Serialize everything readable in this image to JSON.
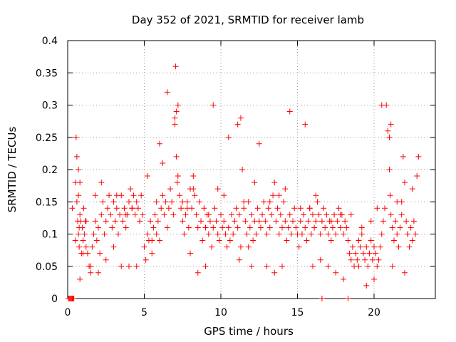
{
  "chart_data": {
    "type": "scatter",
    "title": "Day 352 of 2021, SRMTID for receiver lamb",
    "xlabel": "GPS time / hours",
    "ylabel": "SRMTID / TECUs",
    "xlim": [
      0,
      24
    ],
    "ylim": [
      0,
      0.4
    ],
    "x_ticks": [
      0,
      5,
      10,
      15,
      20
    ],
    "x_tick_labels": [
      "0",
      "5",
      "10",
      "15",
      "20"
    ],
    "y_ticks": [
      0,
      0.05,
      0.1,
      0.15,
      0.2,
      0.25,
      0.3,
      0.35,
      0.4
    ],
    "y_tick_labels": [
      "0",
      "0.05",
      "0.1",
      "0.15",
      "0.2",
      "0.25",
      "0.3",
      "0.35",
      "0.4"
    ],
    "grid": true,
    "marker": "+",
    "series": [
      {
        "name": "SRMTID",
        "color": "#ff0000",
        "x": [
          0.05,
          0.1,
          0.15,
          0.2,
          0.25,
          0.3,
          0.35,
          0.4,
          0.5,
          0.5,
          0.55,
          0.6,
          0.6,
          0.65,
          0.7,
          0.7,
          0.75,
          0.8,
          0.8,
          0.85,
          0.9,
          0.95,
          1.0,
          1.05,
          1.1,
          1.15,
          1.2,
          1.3,
          1.4,
          1.5,
          1.6,
          1.7,
          1.8,
          1.9,
          2.0,
          2.1,
          2.2,
          2.3,
          2.4,
          2.5,
          2.6,
          2.7,
          2.8,
          2.9,
          3.0,
          3.1,
          3.2,
          3.3,
          3.4,
          3.5,
          3.6,
          3.7,
          3.8,
          3.9,
          4.0,
          4.1,
          4.2,
          4.3,
          4.4,
          4.5,
          4.6,
          4.7,
          4.8,
          4.9,
          5.0,
          5.1,
          5.2,
          5.3,
          5.4,
          5.5,
          5.6,
          5.7,
          5.8,
          5.9,
          6.0,
          6.1,
          6.2,
          6.3,
          6.4,
          6.5,
          6.6,
          6.7,
          6.8,
          6.9,
          7.0,
          7.05,
          7.1,
          7.15,
          7.2,
          7.3,
          7.4,
          7.5,
          7.6,
          7.7,
          7.8,
          7.9,
          8.0,
          8.1,
          8.2,
          8.3,
          8.4,
          8.5,
          8.6,
          8.7,
          8.8,
          8.9,
          9.0,
          9.1,
          9.2,
          9.3,
          9.4,
          9.5,
          9.6,
          9.7,
          9.8,
          9.9,
          10.0,
          10.1,
          10.2,
          10.3,
          10.4,
          10.5,
          10.6,
          10.7,
          10.8,
          10.9,
          11.0,
          11.1,
          11.2,
          11.3,
          11.4,
          11.5,
          11.6,
          11.7,
          11.8,
          11.9,
          12.0,
          12.1,
          12.2,
          12.3,
          12.4,
          12.5,
          12.6,
          12.7,
          12.8,
          12.9,
          13.0,
          13.1,
          13.2,
          13.3,
          13.4,
          13.5,
          13.6,
          13.7,
          13.8,
          13.9,
          14.0,
          14.1,
          14.2,
          14.3,
          14.4,
          14.5,
          14.6,
          14.7,
          14.8,
          14.9,
          15.0,
          15.1,
          15.2,
          15.3,
          15.4,
          15.5,
          15.6,
          15.7,
          15.8,
          15.9,
          16.0,
          16.1,
          16.2,
          16.3,
          16.4,
          16.5,
          16.6,
          16.7,
          16.8,
          16.9,
          17.0,
          17.1,
          17.2,
          17.3,
          17.4,
          17.5,
          17.6,
          17.7,
          17.8,
          17.9,
          18.0,
          18.1,
          18.2,
          18.3,
          18.4,
          18.5,
          18.6,
          18.7,
          18.8,
          18.9,
          19.0,
          19.1,
          19.2,
          19.3,
          19.4,
          19.5,
          19.6,
          19.7,
          19.8,
          19.9,
          20.0,
          20.1,
          20.2,
          20.3,
          20.4,
          20.5,
          20.6,
          20.7,
          20.8,
          20.9,
          21.0,
          21.05,
          21.1,
          21.2,
          21.3,
          21.4,
          21.5,
          21.6,
          21.7,
          21.8,
          21.9,
          22.0,
          22.1,
          22.2,
          22.3,
          22.4,
          22.5,
          22.6,
          22.7,
          22.8,
          22.9,
          0.7,
          0.75,
          0.8,
          1.0,
          1.5,
          2.0,
          2.5,
          3.0,
          3.5,
          4.0,
          4.5,
          5.5,
          6.0,
          6.5,
          7.0,
          7.1,
          7.2,
          8.0,
          8.5,
          9.0,
          9.5,
          10.5,
          11.1,
          11.2,
          11.3,
          12.0,
          12.5,
          13.0,
          13.5,
          14.0,
          14.5,
          15.5,
          16.0,
          16.5,
          17.0,
          17.5,
          18.0,
          19.0,
          19.5,
          20.0,
          20.5,
          21.0,
          21.1,
          21.2,
          22.0,
          22.5,
          1.2,
          2.2,
          3.2,
          4.2,
          5.2,
          6.2,
          7.5,
          8.2,
          9.2,
          10.2,
          11.5,
          12.2,
          13.2,
          14.2,
          15.2,
          16.2,
          17.2,
          18.5,
          19.2,
          20.2,
          21.5,
          22.2,
          0.3,
          1.8,
          3.8,
          5.8,
          7.8,
          9.8,
          11.8,
          13.8,
          15.8,
          17.8,
          19.8,
          21.8,
          16.6,
          18.3
        ],
        "y": [
          0,
          0,
          0,
          0,
          0,
          0,
          0,
          0,
          0.09,
          0.18,
          0.25,
          0.15,
          0.22,
          0.12,
          0.2,
          0.1,
          0.08,
          0.13,
          0.18,
          0.12,
          0.07,
          0.11,
          0.09,
          0.14,
          0.1,
          0.12,
          0.08,
          0.07,
          0.05,
          0.04,
          0.08,
          0.1,
          0.12,
          0.09,
          0.11,
          0.07,
          0.13,
          0.15,
          0.1,
          0.12,
          0.14,
          0.16,
          0.13,
          0.11,
          0.15,
          0.12,
          0.14,
          0.1,
          0.13,
          0.16,
          0.12,
          0.14,
          0.11,
          0.13,
          0.15,
          0.17,
          0.14,
          0.16,
          0.13,
          0.15,
          0.14,
          0.12,
          0.16,
          0.13,
          0.08,
          0.06,
          0.1,
          0.09,
          0.12,
          0.07,
          0.11,
          0.13,
          0.1,
          0.12,
          0.09,
          0.14,
          0.16,
          0.13,
          0.15,
          0.11,
          0.14,
          0.17,
          0.15,
          0.13,
          0.28,
          0.36,
          0.22,
          0.18,
          0.3,
          0.16,
          0.14,
          0.12,
          0.1,
          0.13,
          0.15,
          0.11,
          0.17,
          0.14,
          0.19,
          0.16,
          0.13,
          0.11,
          0.15,
          0.12,
          0.09,
          0.14,
          0.11,
          0.13,
          0.1,
          0.12,
          0.08,
          0.11,
          0.14,
          0.12,
          0.1,
          0.09,
          0.13,
          0.11,
          0.12,
          0.1,
          0.08,
          0.11,
          0.09,
          0.13,
          0.1,
          0.12,
          0.14,
          0.11,
          0.13,
          0.28,
          0.2,
          0.15,
          0.12,
          0.1,
          0.08,
          0.11,
          0.13,
          0.09,
          0.12,
          0.1,
          0.14,
          0.12,
          0.11,
          0.13,
          0.15,
          0.12,
          0.1,
          0.14,
          0.11,
          0.13,
          0.16,
          0.18,
          0.12,
          0.14,
          0.1,
          0.13,
          0.11,
          0.15,
          0.12,
          0.09,
          0.11,
          0.13,
          0.1,
          0.12,
          0.14,
          0.11,
          0.1,
          0.08,
          0.12,
          0.1,
          0.13,
          0.11,
          0.09,
          0.12,
          0.14,
          0.1,
          0.13,
          0.11,
          0.12,
          0.15,
          0.13,
          0.1,
          0.12,
          0.14,
          0.11,
          0.13,
          0.1,
          0.12,
          0.09,
          0.11,
          0.13,
          0.1,
          0.12,
          0.14,
          0.11,
          0.13,
          0.1,
          0.12,
          0.11,
          0.09,
          0.07,
          0.06,
          0.08,
          0.05,
          0.07,
          0.06,
          0.09,
          0.08,
          0.1,
          0.07,
          0.06,
          0.08,
          0.05,
          0.07,
          0.09,
          0.06,
          0.08,
          0.07,
          0.05,
          0.06,
          0.08,
          0.1,
          0.12,
          0.14,
          0.3,
          0.26,
          0.2,
          0.16,
          0.13,
          0.11,
          0.09,
          0.12,
          0.1,
          0.08,
          0.11,
          0.13,
          0.22,
          0.18,
          0.12,
          0.1,
          0.08,
          0.11,
          0.09,
          0.12,
          0.1,
          0.19,
          0.22,
          0.16,
          0.11,
          0.03,
          0.07,
          0.05,
          0.04,
          0.06,
          0.08,
          0.05,
          0.05,
          0.05,
          0.09,
          0.24,
          0.32,
          0.27,
          0.29,
          0.19,
          0.07,
          0.04,
          0.05,
          0.3,
          0.25,
          0.27,
          0.06,
          0.08,
          0.05,
          0.24,
          0.05,
          0.04,
          0.05,
          0.29,
          0.27,
          0.05,
          0.06,
          0.05,
          0.04,
          0.03,
          0.05,
          0.02,
          0.03,
          0.3,
          0.25,
          0.27,
          0.05,
          0.04,
          0.17,
          0.12,
          0.18,
          0.16,
          0.14,
          0.19,
          0.21,
          0.15,
          0.17,
          0.13,
          0.16,
          0.14,
          0.18,
          0.15,
          0.17,
          0.14,
          0.16,
          0.12,
          0.13,
          0.11,
          0.14,
          0.15,
          0.1,
          0.14,
          0.16,
          0.13,
          0.15,
          0.14,
          0.17,
          0.15,
          0.16,
          0.14,
          0.13,
          0.12,
          0.15,
          0,
          0
        ],
        "marker": "+"
      }
    ]
  }
}
